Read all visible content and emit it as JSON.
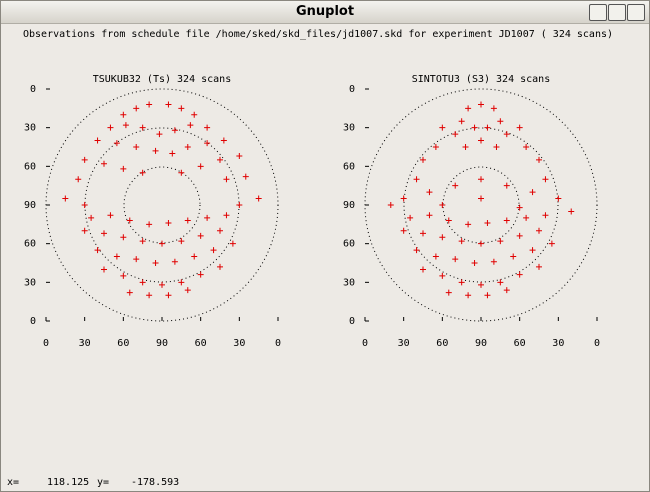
{
  "window": {
    "title": "Gnuplot"
  },
  "header": "Observations from schedule file /home/sked/skd_files/jd1007.skd for experiment JD1007   ( 324 scans)",
  "status_bar": {
    "x_label": "x=",
    "x_value": "118.125",
    "y_label": "y=",
    "y_value": "-178.593"
  },
  "chart_data": [
    {
      "type": "scatter",
      "title": "TSUKUB32 (Ts)  324 scans",
      "color": "#e00000",
      "xlim": [
        0,
        180
      ],
      "ylim": [
        0,
        180
      ],
      "xticks": [
        0,
        30,
        60,
        90,
        {
          "value": 120,
          "label": "60"
        },
        {
          "value": 150,
          "label": "30"
        },
        {
          "value": 180,
          "label": "0"
        }
      ],
      "yticks": [
        {
          "value": 180,
          "label": "0"
        },
        {
          "value": 150,
          "label": "30"
        },
        {
          "value": 120,
          "label": "60"
        },
        90,
        60,
        30,
        0
      ],
      "x": [
        60,
        70,
        80,
        95,
        105,
        115,
        50,
        62,
        75,
        88,
        100,
        112,
        125,
        40,
        55,
        70,
        85,
        98,
        110,
        125,
        138,
        30,
        45,
        60,
        75,
        105,
        120,
        135,
        150,
        25,
        140,
        155,
        15,
        30,
        150,
        165,
        35,
        50,
        65,
        80,
        95,
        110,
        125,
        140,
        30,
        45,
        60,
        75,
        90,
        105,
        120,
        135,
        40,
        55,
        70,
        85,
        100,
        115,
        130,
        145,
        45,
        60,
        75,
        90,
        105,
        120,
        135,
        65,
        80,
        95,
        110
      ],
      "values": [
        160,
        165,
        168,
        168,
        165,
        160,
        150,
        152,
        150,
        145,
        148,
        152,
        150,
        140,
        138,
        135,
        132,
        130,
        135,
        138,
        140,
        125,
        122,
        118,
        115,
        115,
        120,
        125,
        128,
        110,
        110,
        112,
        95,
        90,
        90,
        95,
        80,
        82,
        78,
        75,
        76,
        78,
        80,
        82,
        70,
        68,
        65,
        62,
        60,
        62,
        66,
        70,
        55,
        50,
        48,
        45,
        46,
        50,
        55,
        60,
        40,
        35,
        30,
        28,
        30,
        36,
        42,
        22,
        20,
        20,
        24
      ]
    },
    {
      "type": "scatter",
      "title": "SINTOTU3 (S3)  324 scans",
      "color": "#e00000",
      "xlim": [
        0,
        180
      ],
      "ylim": [
        0,
        180
      ],
      "xticks": [
        0,
        30,
        60,
        90,
        {
          "value": 120,
          "label": "60"
        },
        {
          "value": 150,
          "label": "30"
        },
        {
          "value": 180,
          "label": "0"
        }
      ],
      "yticks": [
        {
          "value": 180,
          "label": "0"
        },
        {
          "value": 150,
          "label": "30"
        },
        {
          "value": 120,
          "label": "60"
        },
        90,
        60,
        30,
        0
      ],
      "x": [
        80,
        90,
        100,
        75,
        105,
        85,
        95,
        90,
        70,
        110,
        78,
        102,
        60,
        120,
        55,
        125,
        45,
        135,
        40,
        140,
        30,
        50,
        70,
        90,
        110,
        130,
        150,
        160,
        20,
        60,
        90,
        120,
        35,
        50,
        65,
        80,
        95,
        110,
        125,
        140,
        30,
        45,
        60,
        75,
        90,
        105,
        120,
        135,
        40,
        55,
        70,
        85,
        100,
        115,
        130,
        145,
        45,
        60,
        75,
        90,
        105,
        120,
        135,
        65,
        80,
        95,
        110
      ],
      "values": [
        165,
        168,
        165,
        155,
        155,
        150,
        150,
        140,
        145,
        145,
        135,
        135,
        150,
        150,
        135,
        135,
        125,
        125,
        110,
        110,
        95,
        100,
        105,
        110,
        105,
        100,
        95,
        85,
        90,
        90,
        95,
        88,
        80,
        82,
        78,
        75,
        76,
        78,
        80,
        82,
        70,
        68,
        65,
        62,
        60,
        62,
        66,
        70,
        55,
        50,
        48,
        45,
        46,
        50,
        55,
        60,
        40,
        35,
        30,
        28,
        30,
        36,
        42,
        22,
        20,
        20,
        24
      ]
    }
  ]
}
